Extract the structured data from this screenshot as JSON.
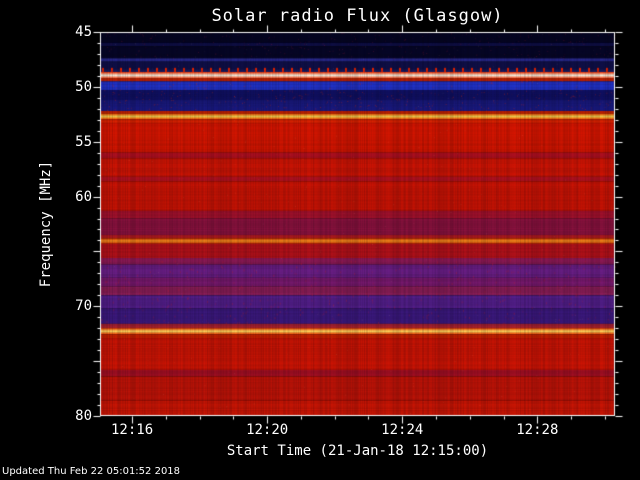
{
  "page": {
    "footer": "Updated Thu Feb 22 05:01:52 2018"
  },
  "chart_data": {
    "type": "heatmap",
    "title": "Solar radio Flux (Glasgow)",
    "xlabel": "Start Time (21-Jan-18 12:15:00)",
    "ylabel": "Frequency [MHz]",
    "x_start_time": "12:15:00",
    "x_date": "21-Jan-18",
    "x_range_min": [
      15.05,
      30.3
    ],
    "x_ticks": [
      {
        "label": "12:16",
        "minute": 16
      },
      {
        "label": "12:20",
        "minute": 20
      },
      {
        "label": "12:24",
        "minute": 24
      },
      {
        "label": "12:28",
        "minute": 28
      }
    ],
    "y_range_mhz": [
      45,
      80
    ],
    "y_tick_labels": [
      {
        "label": "45",
        "mhz": 45
      },
      {
        "label": "50",
        "mhz": 50
      },
      {
        "label": "55",
        "mhz": 55
      },
      {
        "label": "60",
        "mhz": 60
      },
      {
        "label": "70",
        "mhz": 70
      },
      {
        "label": "80",
        "mhz": 80
      }
    ],
    "legend_position": "none",
    "grid": false,
    "colormap": {
      "background": "#000000",
      "low": "#0a0a33",
      "mid": "#cc1405",
      "high": "#ffeeaa"
    },
    "dotted_row": {
      "mhz": 48.45,
      "color": "#ee2200",
      "period": 9
    },
    "bands": [
      {
        "f0": 45.0,
        "f1": 46.0,
        "type": "fill",
        "color": "#060624"
      },
      {
        "f0": 46.0,
        "f1": 46.3,
        "type": "fill",
        "color": "#10104a"
      },
      {
        "f0": 46.3,
        "f1": 47.4,
        "type": "fill",
        "color": "#070728"
      },
      {
        "f0": 47.4,
        "f1": 47.7,
        "type": "fill",
        "color": "#2a2a90"
      },
      {
        "f0": 47.7,
        "f1": 48.4,
        "type": "fill",
        "color": "#10104a"
      },
      {
        "f0": 48.4,
        "f1": 48.65,
        "type": "fill",
        "color": "#1a1a60"
      },
      {
        "f0": 48.65,
        "f1": 49.25,
        "type": "line",
        "edge": "#ff3300",
        "core": "#ffffee"
      },
      {
        "f0": 49.25,
        "f1": 49.5,
        "type": "fill",
        "color": "#cc2200"
      },
      {
        "f0": 49.5,
        "f1": 50.3,
        "type": "fill",
        "color": "#2233cc"
      },
      {
        "f0": 50.3,
        "f1": 51.2,
        "type": "fill",
        "color": "#111166"
      },
      {
        "f0": 51.2,
        "f1": 52.2,
        "type": "fill",
        "color": "#1a1a80"
      },
      {
        "f0": 52.2,
        "f1": 52.45,
        "type": "fill",
        "color": "#cc2200"
      },
      {
        "f0": 52.45,
        "f1": 52.95,
        "type": "line",
        "edge": "#ff5500",
        "core": "#ffdd55"
      },
      {
        "f0": 52.95,
        "f1": 53.3,
        "type": "fill",
        "color": "#dd2200"
      },
      {
        "f0": 53.3,
        "f1": 56.0,
        "type": "fill",
        "color": "#d81600"
      },
      {
        "f0": 56.0,
        "f1": 56.5,
        "type": "fill",
        "color": "#b01020"
      },
      {
        "f0": 56.5,
        "f1": 58.2,
        "type": "fill",
        "color": "#d01505"
      },
      {
        "f0": 58.2,
        "f1": 58.6,
        "type": "fill",
        "color": "#b51220"
      },
      {
        "f0": 58.6,
        "f1": 61.3,
        "type": "fill",
        "color": "#cc1405"
      },
      {
        "f0": 61.3,
        "f1": 62.0,
        "type": "fill",
        "color": "#a8122e"
      },
      {
        "f0": 62.0,
        "f1": 63.5,
        "type": "fill",
        "color": "#8e1340"
      },
      {
        "f0": 63.5,
        "f1": 63.8,
        "type": "fill",
        "color": "#b01a20"
      },
      {
        "f0": 63.8,
        "f1": 64.3,
        "type": "line",
        "edge": "#dd3300",
        "core": "#ff9922"
      },
      {
        "f0": 64.3,
        "f1": 65.6,
        "type": "fill",
        "color": "#b5121a"
      },
      {
        "f0": 65.6,
        "f1": 66.2,
        "type": "fill",
        "color": "#8c1a55"
      },
      {
        "f0": 66.2,
        "f1": 67.4,
        "type": "fill",
        "color": "#6a1f86"
      },
      {
        "f0": 67.4,
        "f1": 68.2,
        "type": "fill",
        "color": "#7a1a70"
      },
      {
        "f0": 68.2,
        "f1": 69.0,
        "type": "fill",
        "color": "#8e1f5a"
      },
      {
        "f0": 69.0,
        "f1": 70.2,
        "type": "fill",
        "color": "#55208e"
      },
      {
        "f0": 70.2,
        "f1": 71.6,
        "type": "fill",
        "color": "#3d1a80"
      },
      {
        "f0": 71.6,
        "f1": 72.0,
        "type": "fill",
        "color": "#aa2230"
      },
      {
        "f0": 72.0,
        "f1": 72.55,
        "type": "line",
        "edge": "#ff4400",
        "core": "#ffe066"
      },
      {
        "f0": 72.55,
        "f1": 72.9,
        "type": "fill",
        "color": "#cc2200"
      },
      {
        "f0": 72.9,
        "f1": 75.8,
        "type": "fill",
        "color": "#d01505"
      },
      {
        "f0": 75.8,
        "f1": 76.4,
        "type": "fill",
        "color": "#aa1025"
      },
      {
        "f0": 76.4,
        "f1": 78.6,
        "type": "fill",
        "color": "#c41408"
      },
      {
        "f0": 78.6,
        "f1": 80.0,
        "type": "fill",
        "color": "#cf1605"
      }
    ]
  }
}
